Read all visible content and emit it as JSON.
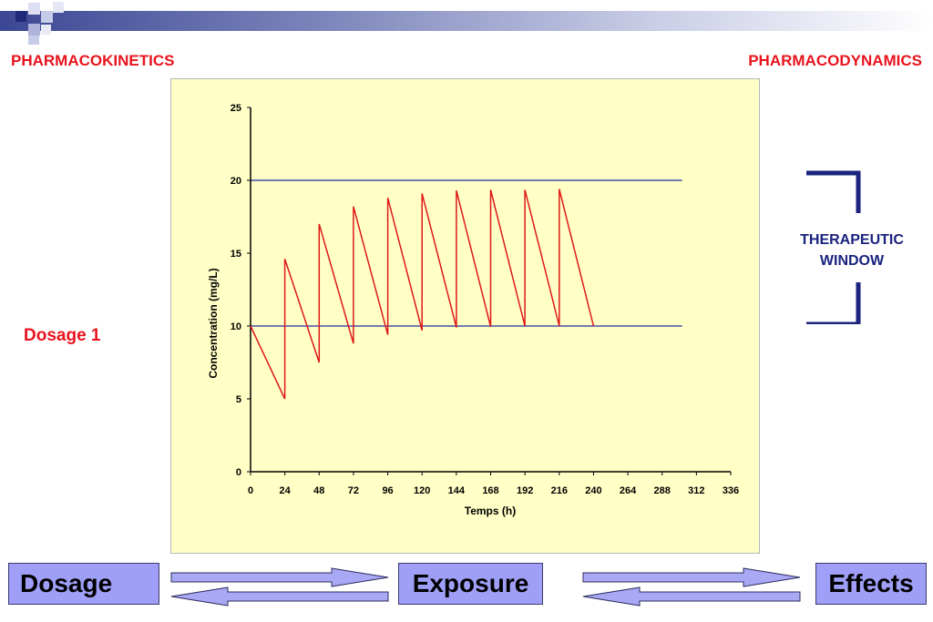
{
  "header": {
    "left_title": "PHARMACOKINETICS",
    "right_title": "PHARMACODYNAMICS"
  },
  "side_label": "Dosage 1",
  "therapeutic_window": {
    "line1": "THERAPEUTIC",
    "line2": "WINDOW",
    "bracket_color": "#1a237e"
  },
  "flow": {
    "box1": "Dosage",
    "box2": "Exposure",
    "box3": "Effects",
    "box_color": "#9f9ff8"
  },
  "colors": {
    "title_red": "#e8141e",
    "chart_bg": "#ffffc6",
    "series": "#e01818",
    "reference_lines": "#1e2ea8"
  },
  "chart_data": {
    "type": "line",
    "title": "",
    "xlabel": "Temps (h)",
    "ylabel": "Concentration (mg/L)",
    "xlim": [
      0,
      336
    ],
    "ylim": [
      0,
      25
    ],
    "xticks": [
      0,
      24,
      48,
      72,
      96,
      120,
      144,
      168,
      192,
      216,
      240,
      264,
      288,
      312,
      336
    ],
    "yticks": [
      0,
      5,
      10,
      15,
      20,
      25
    ],
    "grid": false,
    "reference_lines": [
      {
        "y": 20,
        "x_range": [
          0,
          302
        ]
      },
      {
        "y": 10,
        "x_range": [
          0,
          302
        ]
      }
    ],
    "series": [
      {
        "x": [
          0,
          24,
          24,
          48,
          48,
          72,
          72,
          96,
          96,
          120,
          120,
          144,
          144,
          168,
          168,
          192,
          192,
          216,
          216,
          240
        ],
        "values": [
          10,
          5,
          14.6,
          7.5,
          17,
          8.8,
          18.2,
          9.4,
          18.8,
          9.7,
          19.1,
          9.9,
          19.3,
          9.95,
          19.35,
          10,
          19.35,
          10,
          19.4,
          10
        ]
      }
    ]
  }
}
